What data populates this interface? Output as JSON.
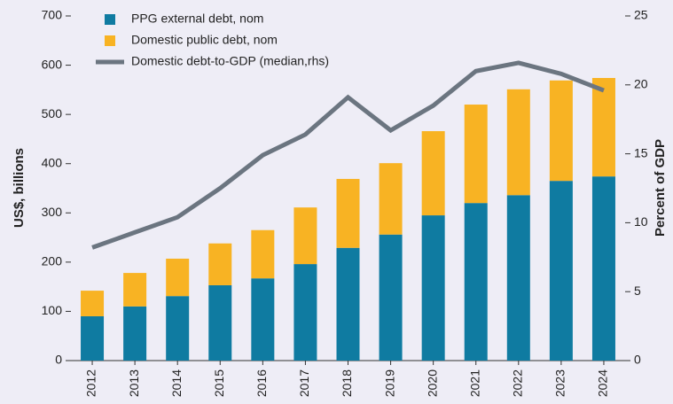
{
  "chart_data": {
    "type": "bar",
    "y_label": "US$, billions",
    "y2_label": "Percent of GDP",
    "categories": [
      "2012",
      "2013",
      "2014",
      "2015",
      "2016",
      "2017",
      "2018",
      "2019",
      "2020",
      "2021",
      "2022",
      "2023",
      "2024"
    ],
    "series": [
      {
        "name": "PPG external debt, nom",
        "color": "#0f7ba1",
        "kind": "bar",
        "values": [
          90,
          110,
          131,
          153,
          167,
          196,
          229,
          256,
          295,
          320,
          336,
          365,
          374
        ]
      },
      {
        "name": "Domestic public debt, nom",
        "color": "#f8b323",
        "kind": "bar",
        "values": [
          52,
          68,
          76,
          85,
          98,
          115,
          140,
          145,
          171,
          200,
          215,
          204,
          200
        ]
      },
      {
        "name": "Domestic debt-to-GDP (median,rhs)",
        "color": "#6b7580",
        "kind": "line",
        "axis": "y2",
        "values": [
          8.2,
          9.3,
          10.4,
          12.5,
          14.9,
          16.4,
          19.1,
          16.7,
          18.5,
          21.0,
          21.6,
          20.8,
          19.6
        ]
      }
    ],
    "stacked": true,
    "ylim": [
      0,
      700
    ],
    "yticks": [
      0,
      100,
      200,
      300,
      400,
      500,
      600,
      700
    ],
    "y2lim": [
      0,
      25
    ],
    "y2ticks": [
      0,
      5,
      10,
      15,
      20,
      25
    ],
    "grid": false,
    "legend": "top-left"
  }
}
